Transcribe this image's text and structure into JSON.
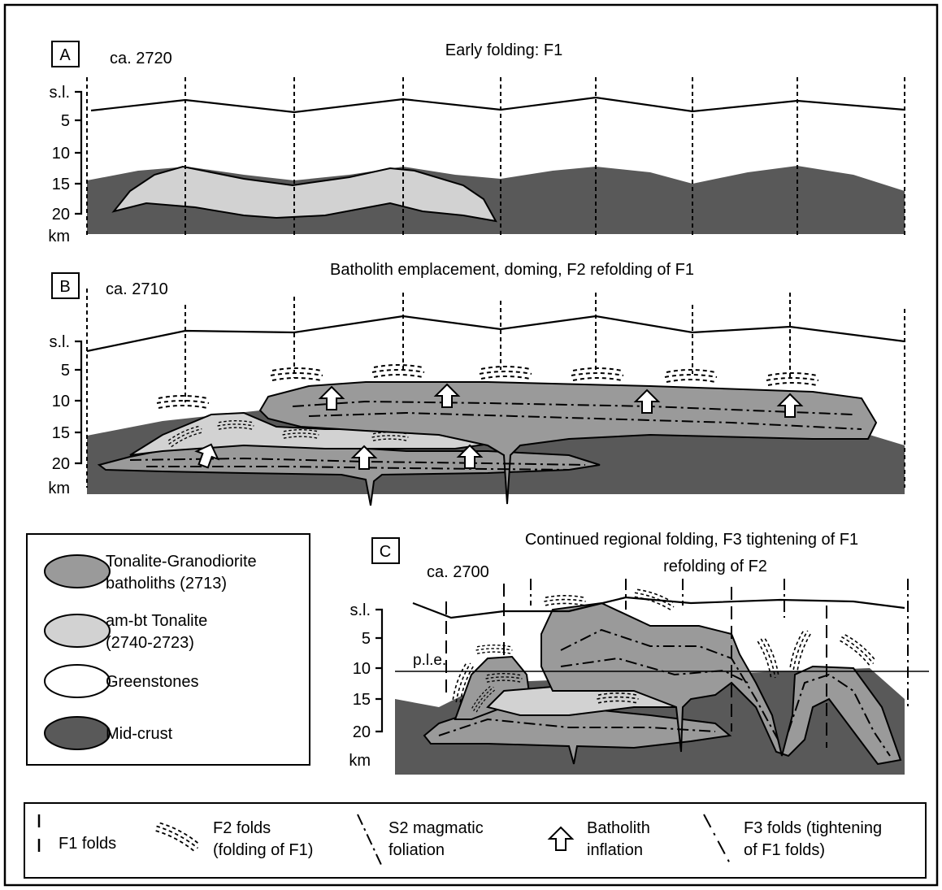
{
  "panels": [
    {
      "label": "A",
      "age": "ca. 2720",
      "title": [
        "Early folding: F1"
      ],
      "depth_labels": [
        "s.l.",
        "5",
        "10",
        "15",
        "20",
        "km"
      ]
    },
    {
      "label": "B",
      "age": "ca. 2710",
      "title": [
        "Batholith emplacement, doming, F2 refolding of F1"
      ],
      "depth_labels": [
        "s.l.",
        "5",
        "10",
        "15",
        "20",
        "km"
      ]
    },
    {
      "label": "C",
      "age": "ca. 2700",
      "title": [
        "Continued regional folding, F3 tightening of F1",
        "refolding of F2"
      ],
      "depth_labels": [
        "s.l.",
        "5",
        "10",
        "15",
        "20",
        "km"
      ],
      "reference_line": "p.l.e."
    }
  ],
  "rock_legend": [
    {
      "lines": [
        "Tonalite-Granodiorite",
        "batholiths (2713)"
      ]
    },
    {
      "lines": [
        "am-bt Tonalite",
        "(2740-2723)"
      ]
    },
    {
      "lines": [
        "Greenstones"
      ]
    },
    {
      "lines": [
        "Mid-crust"
      ]
    }
  ],
  "structure_legend": [
    {
      "lines": [
        "F1 folds"
      ]
    },
    {
      "lines": [
        "F2 folds",
        "(folding of F1)"
      ]
    },
    {
      "lines": [
        "S2 magmatic",
        "foliation"
      ]
    },
    {
      "lines": [
        "Batholith",
        "inflation"
      ]
    },
    {
      "lines": [
        "F3 folds (tightening",
        "of F1 folds)"
      ]
    }
  ]
}
